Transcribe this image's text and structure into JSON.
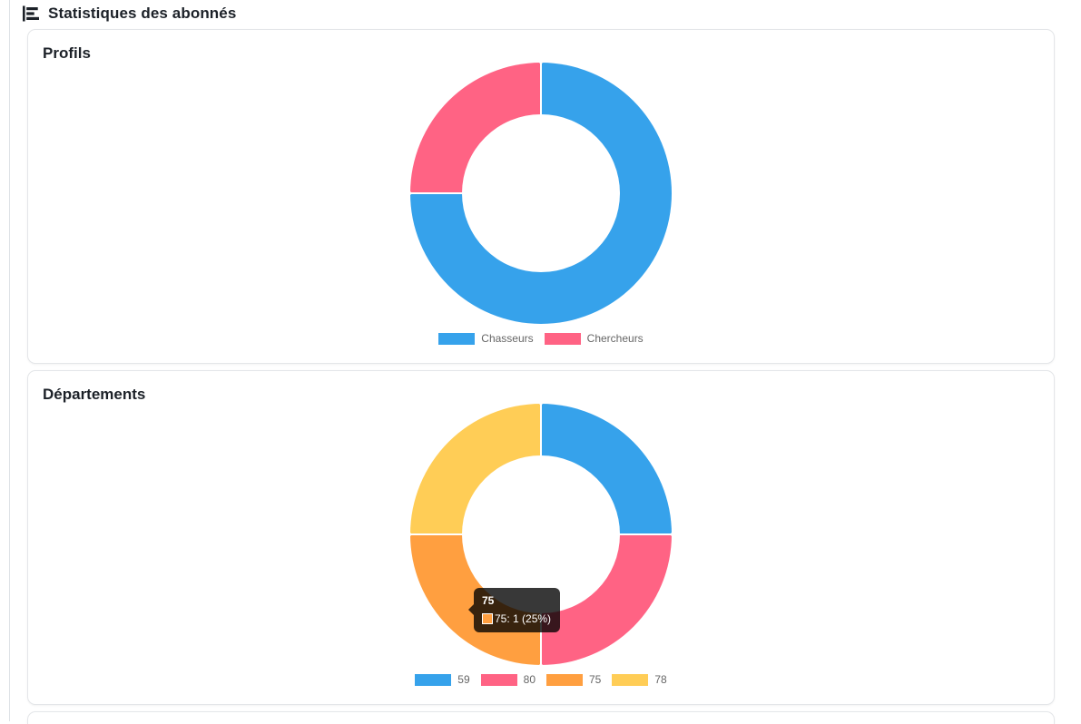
{
  "header": {
    "title": "Statistiques des abonnés",
    "icon": "bar-chart-icon"
  },
  "cards": [
    {
      "title": "Profils"
    },
    {
      "title": "Départements"
    }
  ],
  "tooltip": {
    "title": "75",
    "label": "75: 1 (25%)",
    "swatch_color": "#FF9F40"
  },
  "chart_data": [
    {
      "type": "pie",
      "variant": "doughnut",
      "title": "Profils",
      "labels": [
        "Chasseurs",
        "Chercheurs"
      ],
      "values": [
        3,
        1
      ],
      "percentages": [
        75,
        25
      ],
      "colors": [
        "#36A2EB",
        "#FF6384"
      ],
      "border_color": "#ffffff",
      "cutout": "60%",
      "start_angle_deg": 0,
      "direction": "clockwise",
      "legend_position": "bottom"
    },
    {
      "type": "pie",
      "variant": "doughnut",
      "title": "Départements",
      "labels": [
        "59",
        "80",
        "75",
        "78"
      ],
      "values": [
        1,
        1,
        1,
        1
      ],
      "percentages": [
        25,
        25,
        25,
        25
      ],
      "colors": [
        "#36A2EB",
        "#FF6384",
        "#FF9F40",
        "#FFCD56"
      ],
      "border_color": "#ffffff",
      "cutout": "60%",
      "start_angle_deg": 0,
      "direction": "clockwise",
      "legend_position": "bottom",
      "active_tooltip": {
        "segment_label": "75",
        "value": 1,
        "percent": "25%"
      }
    }
  ]
}
